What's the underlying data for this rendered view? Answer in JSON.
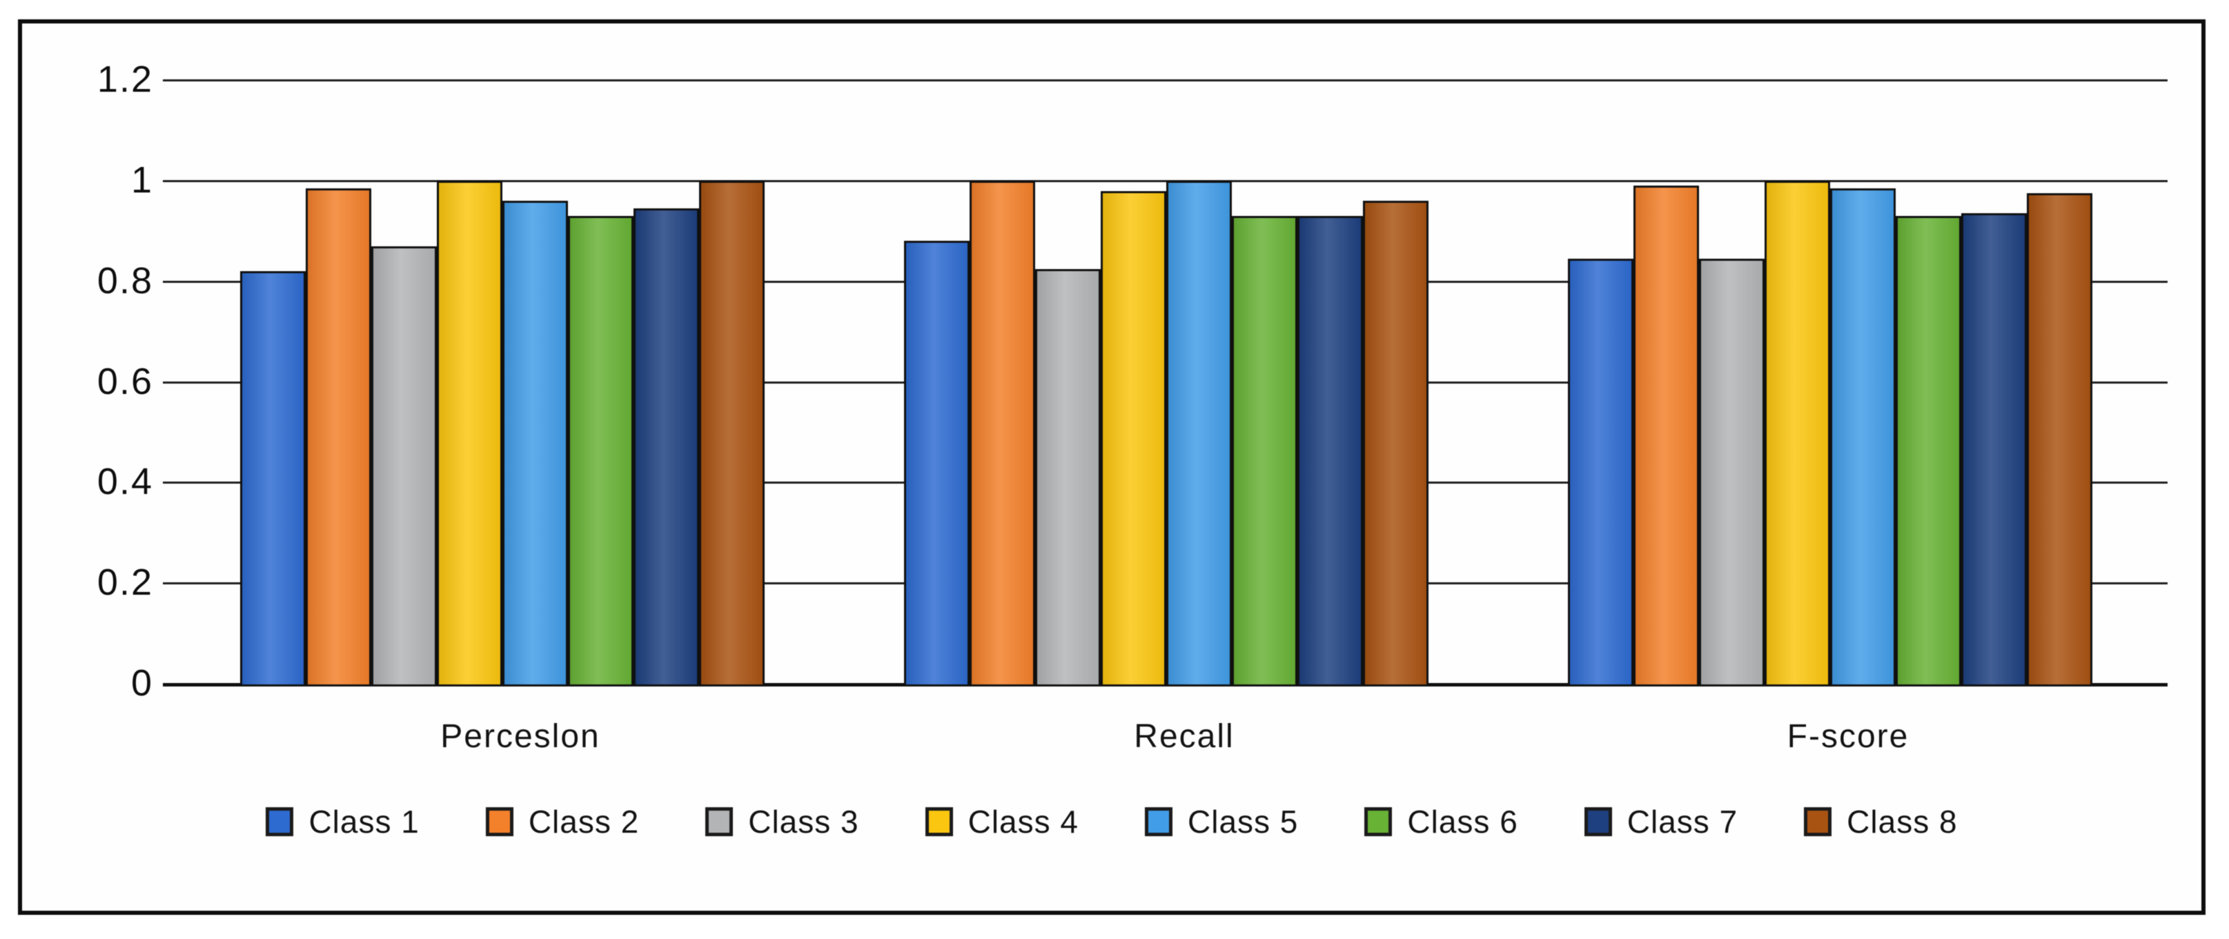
{
  "chart_data": {
    "type": "bar",
    "title": "",
    "categories": [
      "Perceslon",
      "Recall",
      "F-score"
    ],
    "series": [
      {
        "name": "Class 1",
        "color": "#2e6bd1",
        "values": [
          0.82,
          0.88,
          0.845
        ]
      },
      {
        "name": "Class 2",
        "color": "#f3802a",
        "values": [
          0.985,
          1.0,
          0.99
        ]
      },
      {
        "name": "Class 3",
        "color": "#b2b4b6",
        "values": [
          0.87,
          0.825,
          0.845
        ]
      },
      {
        "name": "Class 4",
        "color": "#fbc60f",
        "values": [
          1.0,
          0.98,
          1.0
        ]
      },
      {
        "name": "Class 5",
        "color": "#429de8",
        "values": [
          0.96,
          1.0,
          0.985
        ]
      },
      {
        "name": "Class 6",
        "color": "#68b235",
        "values": [
          0.93,
          0.93,
          0.93
        ]
      },
      {
        "name": "Class 7",
        "color": "#1e4080",
        "values": [
          0.945,
          0.93,
          0.935
        ]
      },
      {
        "name": "Class 8",
        "color": "#a95312",
        "values": [
          1.0,
          0.96,
          0.975
        ]
      }
    ],
    "y_axis": {
      "ticks": [
        "1.2",
        "1",
        "0.8",
        "0.6",
        "0.4",
        "0.2",
        "0"
      ],
      "tick_values": [
        1.2,
        1.0,
        0.8,
        0.6,
        0.4,
        0.2,
        0
      ],
      "min": 0,
      "max": 1.2
    },
    "grid": true,
    "legend_position": "bottom",
    "bar_outline_color": "#101010",
    "grid_color": "#1c1c1c"
  }
}
